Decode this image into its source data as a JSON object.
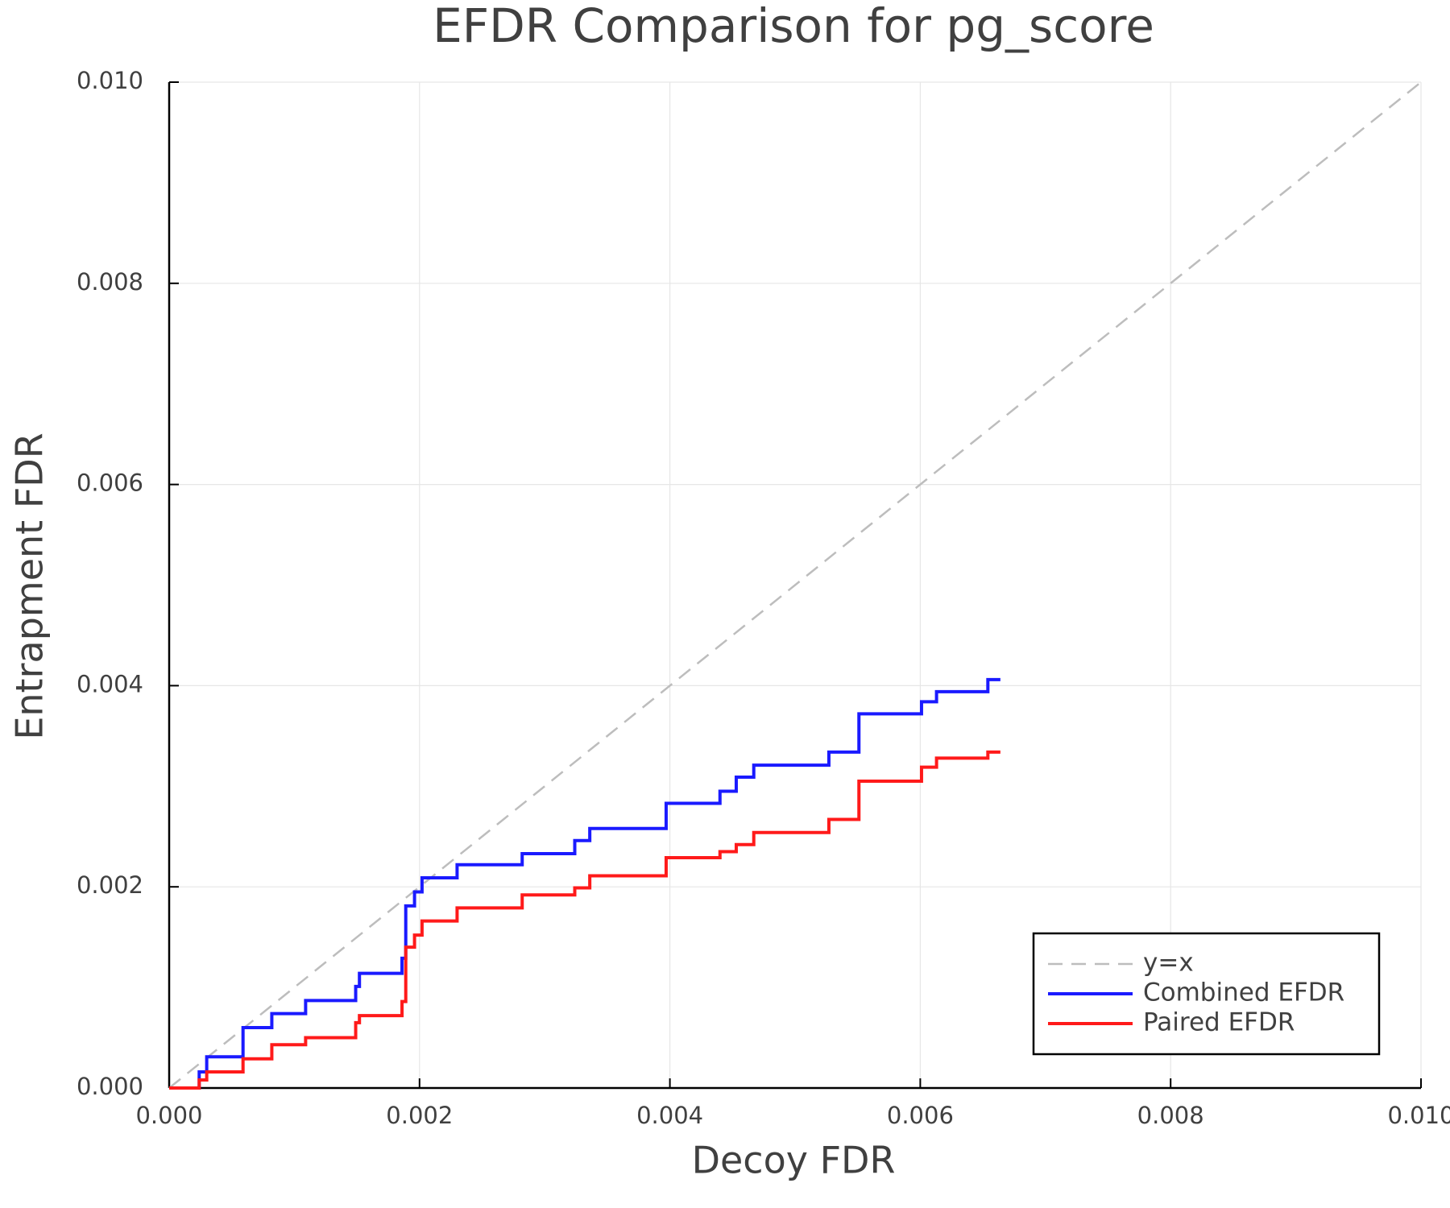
{
  "chart_data": {
    "type": "line",
    "title": "EFDR Comparison for pg_score",
    "x_label": "Decoy FDR",
    "y_label": "Entrapment FDR",
    "xlim": [
      0,
      0.01
    ],
    "ylim": [
      0,
      0.01
    ],
    "xticks": [
      {
        "value": 0,
        "label": "0.000"
      },
      {
        "value": 0.002,
        "label": "0.002"
      },
      {
        "value": 0.004,
        "label": "0.004"
      },
      {
        "value": 0.006,
        "label": "0.006"
      },
      {
        "value": 0.008,
        "label": "0.008"
      },
      {
        "value": 0.01,
        "label": "0.010"
      }
    ],
    "yticks": [
      {
        "value": 0,
        "label": "0.000"
      },
      {
        "value": 0.002,
        "label": "0.002"
      },
      {
        "value": 0.004,
        "label": "0.004"
      },
      {
        "value": 0.006,
        "label": "0.006"
      },
      {
        "value": 0.008,
        "label": "0.008"
      },
      {
        "value": 0.01,
        "label": "0.010"
      }
    ],
    "grid": true,
    "legend_position": "bottom-right",
    "series": [
      {
        "name": "y=x",
        "color": "#bdbdbd",
        "dash": true,
        "x": [
          0,
          0.01
        ],
        "values": [
          0,
          0.01
        ]
      },
      {
        "name": "Combined EFDR",
        "color": "#1a1aff",
        "dash": false,
        "x": [
          0,
          0.00024,
          0.00024,
          0.0003,
          0.0003,
          0.00059,
          0.00059,
          0.00082,
          0.00082,
          0.00109,
          0.00109,
          0.00149,
          0.00149,
          0.00152,
          0.00152,
          0.00186,
          0.00186,
          0.00189,
          0.00189,
          0.00196,
          0.00196,
          0.00202,
          0.00202,
          0.0023,
          0.0023,
          0.00282,
          0.00282,
          0.00324,
          0.00324,
          0.00336,
          0.00336,
          0.00397,
          0.00397,
          0.0044,
          0.0044,
          0.00453,
          0.00453,
          0.00467,
          0.00467,
          0.00527,
          0.00527,
          0.00551,
          0.00551,
          0.00601,
          0.00601,
          0.00613,
          0.00613,
          0.00654,
          0.00654,
          0.00664
        ],
        "values": [
          0,
          0,
          0.00016,
          0.00016,
          0.00031,
          0.00031,
          0.0006,
          0.0006,
          0.00074,
          0.00074,
          0.00087,
          0.00087,
          0.00101,
          0.00101,
          0.00114,
          0.00114,
          0.00129,
          0.00129,
          0.00181,
          0.00181,
          0.00195,
          0.00195,
          0.00209,
          0.00209,
          0.00222,
          0.00222,
          0.00233,
          0.00233,
          0.00246,
          0.00246,
          0.00258,
          0.00258,
          0.00283,
          0.00283,
          0.00295,
          0.00295,
          0.00309,
          0.00309,
          0.00321,
          0.00321,
          0.00334,
          0.00334,
          0.00372,
          0.00372,
          0.00384,
          0.00384,
          0.00394,
          0.00394,
          0.00406,
          0.00406
        ]
      },
      {
        "name": "Paired EFDR",
        "color": "#ff1a1a",
        "dash": false,
        "x": [
          0,
          0.00024,
          0.00024,
          0.0003,
          0.0003,
          0.00059,
          0.00059,
          0.00082,
          0.00082,
          0.00109,
          0.00109,
          0.00149,
          0.00149,
          0.00152,
          0.00152,
          0.00186,
          0.00186,
          0.00189,
          0.00189,
          0.00196,
          0.00196,
          0.00202,
          0.00202,
          0.0023,
          0.0023,
          0.00282,
          0.00282,
          0.00324,
          0.00324,
          0.00336,
          0.00336,
          0.00397,
          0.00397,
          0.0044,
          0.0044,
          0.00453,
          0.00453,
          0.00467,
          0.00467,
          0.00527,
          0.00527,
          0.00551,
          0.00551,
          0.00601,
          0.00601,
          0.00613,
          0.00613,
          0.00654,
          0.00654,
          0.00664
        ],
        "values": [
          0,
          0,
          8e-05,
          8e-05,
          0.00016,
          0.00016,
          0.00029,
          0.00029,
          0.00043,
          0.00043,
          0.0005,
          0.0005,
          0.00065,
          0.00065,
          0.00072,
          0.00072,
          0.00086,
          0.00086,
          0.0014,
          0.0014,
          0.00152,
          0.00152,
          0.00166,
          0.00166,
          0.00179,
          0.00179,
          0.00192,
          0.00192,
          0.00199,
          0.00199,
          0.00211,
          0.00211,
          0.00229,
          0.00229,
          0.00235,
          0.00235,
          0.00242,
          0.00242,
          0.00254,
          0.00254,
          0.00267,
          0.00267,
          0.00305,
          0.00305,
          0.00319,
          0.00319,
          0.00328,
          0.00328,
          0.00334,
          0.00334
        ]
      }
    ]
  }
}
